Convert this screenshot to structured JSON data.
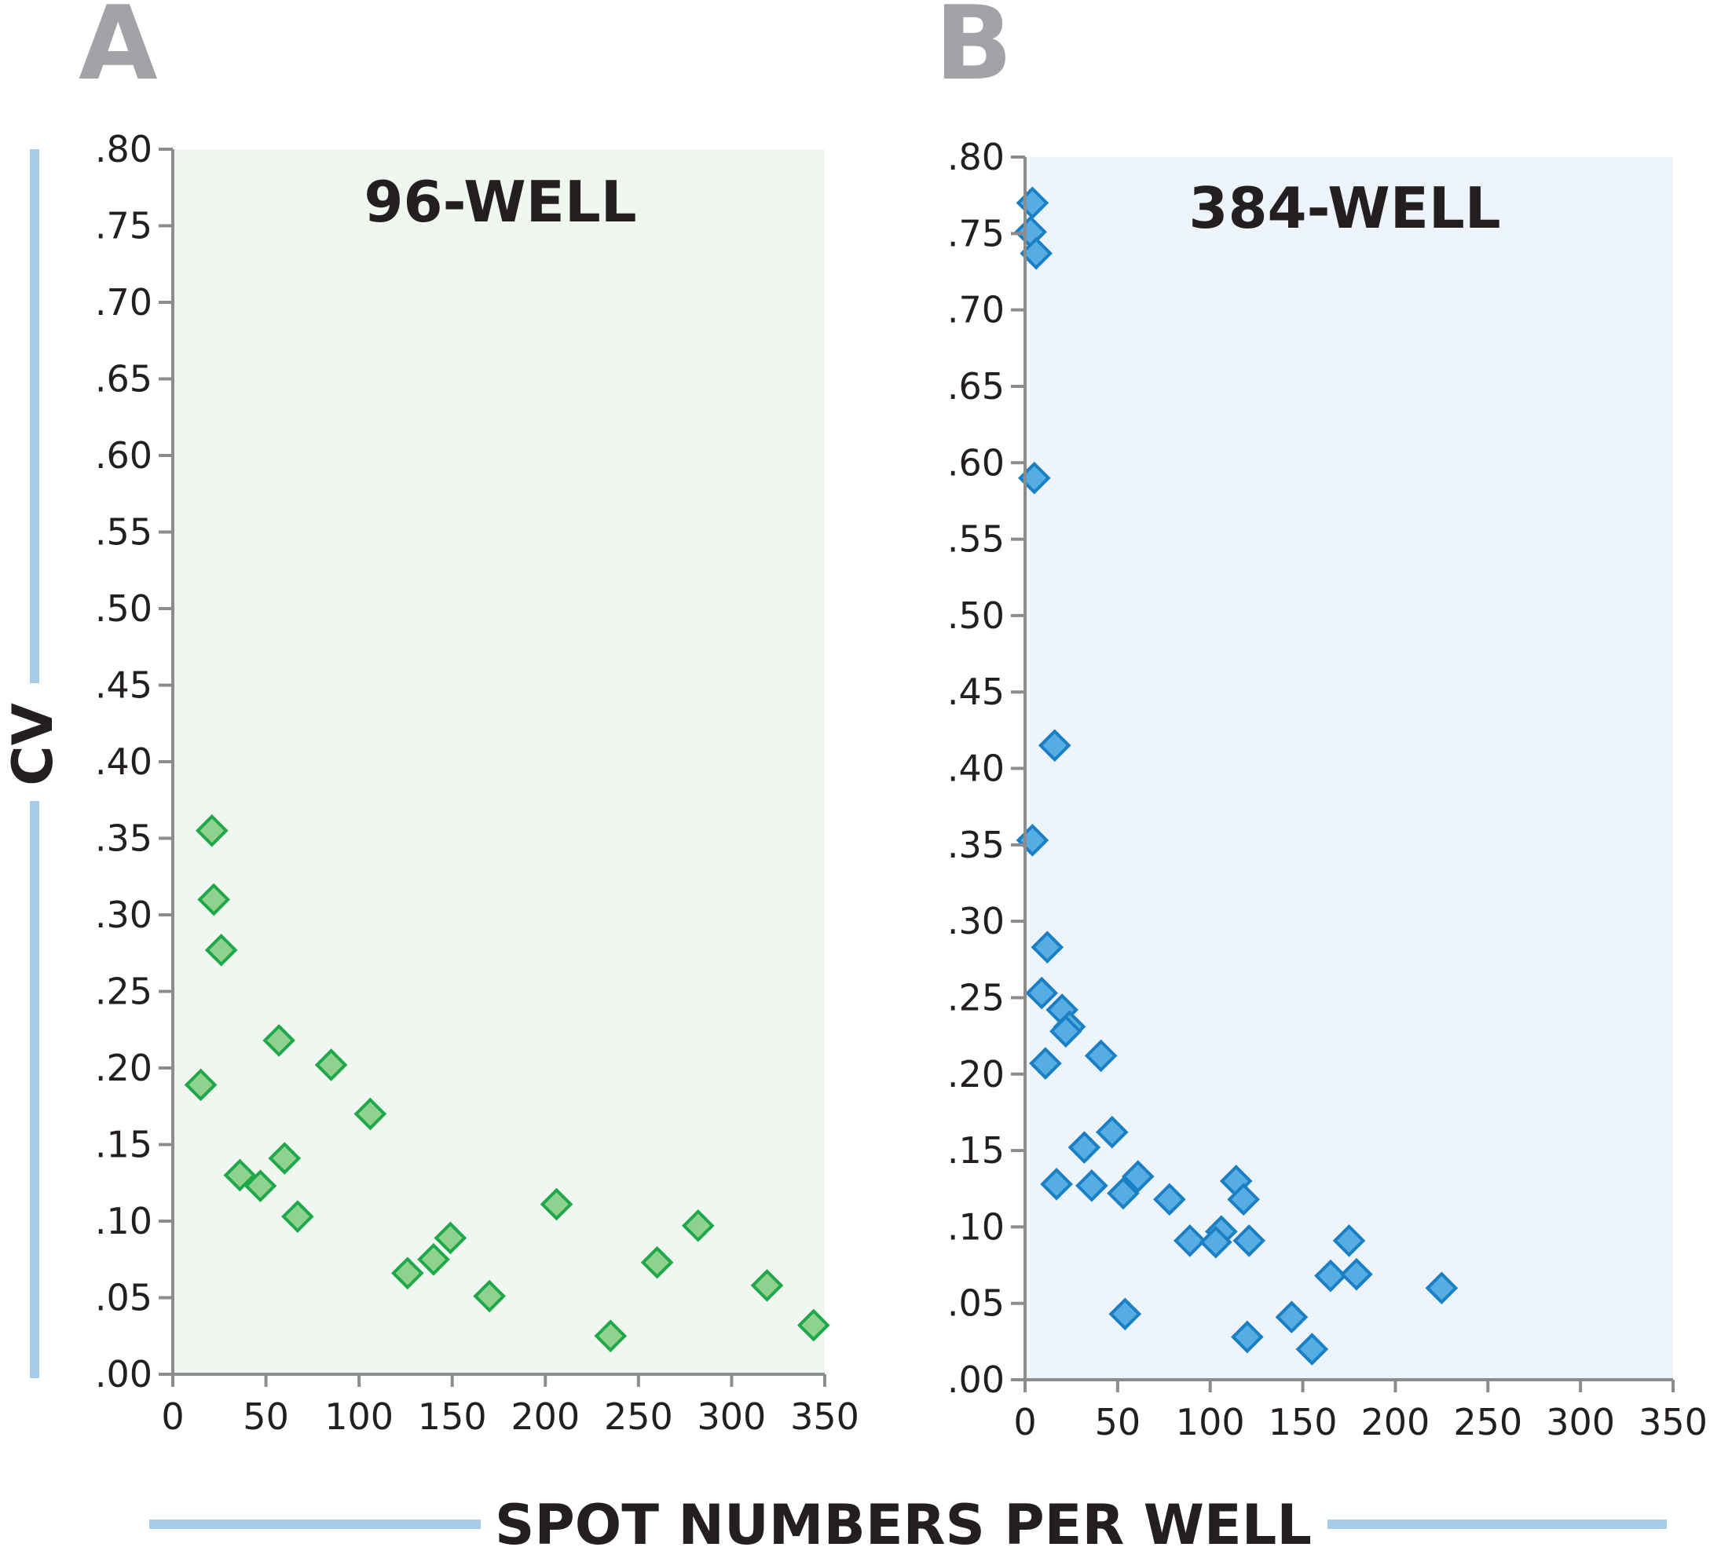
{
  "figure": {
    "ylabel": "CV",
    "xlabel": "SPOT NUMBERS PER WELL",
    "accent_line_color": "#a9cbea"
  },
  "chart_data": [
    {
      "type": "scatter",
      "panel": "A",
      "title": "96-WELL",
      "xlabel": "SPOT NUMBERS PER WELL",
      "ylabel": "CV",
      "xlim": [
        0,
        350
      ],
      "ylim": [
        0,
        0.8
      ],
      "xticks": [
        0,
        50,
        100,
        150,
        200,
        250,
        300,
        350
      ],
      "xtick_labels": [
        "0",
        "50",
        "100",
        "150",
        "200",
        "250",
        "300",
        "350"
      ],
      "yticks": [
        0,
        0.05,
        0.1,
        0.15,
        0.2,
        0.25,
        0.3,
        0.35,
        0.4,
        0.45,
        0.5,
        0.55,
        0.6,
        0.65,
        0.7,
        0.75,
        0.8
      ],
      "ytick_labels": [
        ".00",
        ".05",
        ".10",
        ".15",
        ".20",
        ".25",
        ".30",
        ".35",
        ".40",
        ".45",
        ".50",
        ".55",
        ".60",
        ".65",
        ".70",
        ".75",
        ".80"
      ],
      "background": "#f0f6f0",
      "marker_fill": "#8fd18f",
      "marker_stroke": "#1fa84a",
      "grid": false,
      "series": [
        {
          "name": "96-WELL",
          "x": [
            15,
            21,
            22,
            26,
            36,
            47,
            57,
            60,
            67,
            85,
            106,
            126,
            140,
            149,
            170,
            206,
            235,
            260,
            282,
            319,
            344
          ],
          "y": [
            0.189,
            0.355,
            0.31,
            0.277,
            0.13,
            0.123,
            0.218,
            0.141,
            0.103,
            0.202,
            0.17,
            0.066,
            0.075,
            0.089,
            0.051,
            0.111,
            0.025,
            0.073,
            0.097,
            0.058,
            0.032
          ]
        }
      ]
    },
    {
      "type": "scatter",
      "panel": "B",
      "title": "384-WELL",
      "xlabel": "SPOT NUMBERS PER WELL",
      "ylabel": "CV",
      "xlim": [
        0,
        350
      ],
      "ylim": [
        0,
        0.8
      ],
      "xticks": [
        0,
        50,
        100,
        150,
        200,
        250,
        300,
        350
      ],
      "xtick_labels": [
        "0",
        "50",
        "100",
        "150",
        "200",
        "250",
        "300",
        "350"
      ],
      "yticks": [
        0,
        0.05,
        0.1,
        0.15,
        0.2,
        0.25,
        0.3,
        0.35,
        0.4,
        0.45,
        0.5,
        0.55,
        0.6,
        0.65,
        0.7,
        0.75,
        0.8
      ],
      "ytick_labels": [
        ".00",
        ".05",
        ".10",
        ".15",
        ".20",
        ".25",
        ".30",
        ".35",
        ".40",
        ".45",
        ".50",
        ".55",
        ".60",
        ".65",
        ".70",
        ".75",
        ".80"
      ],
      "background": "#edf4fb",
      "marker_fill": "#55ade3",
      "marker_stroke": "#1b7fc4",
      "grid": false,
      "series": [
        {
          "name": "384-WELL",
          "x": [
            4,
            3,
            6,
            5,
            16,
            4,
            12,
            9,
            20,
            24,
            22,
            11,
            41,
            47,
            32,
            61,
            17,
            36,
            53,
            78,
            89,
            106,
            103,
            114,
            118,
            121,
            54,
            120,
            144,
            155,
            165,
            175,
            179,
            225
          ],
          "y": [
            0.77,
            0.751,
            0.737,
            0.59,
            0.415,
            0.353,
            0.283,
            0.253,
            0.242,
            0.231,
            0.228,
            0.207,
            0.212,
            0.162,
            0.152,
            0.133,
            0.128,
            0.127,
            0.122,
            0.118,
            0.091,
            0.097,
            0.09,
            0.13,
            0.118,
            0.091,
            0.043,
            0.028,
            0.041,
            0.02,
            0.068,
            0.091,
            0.069,
            0.06
          ]
        }
      ]
    }
  ]
}
